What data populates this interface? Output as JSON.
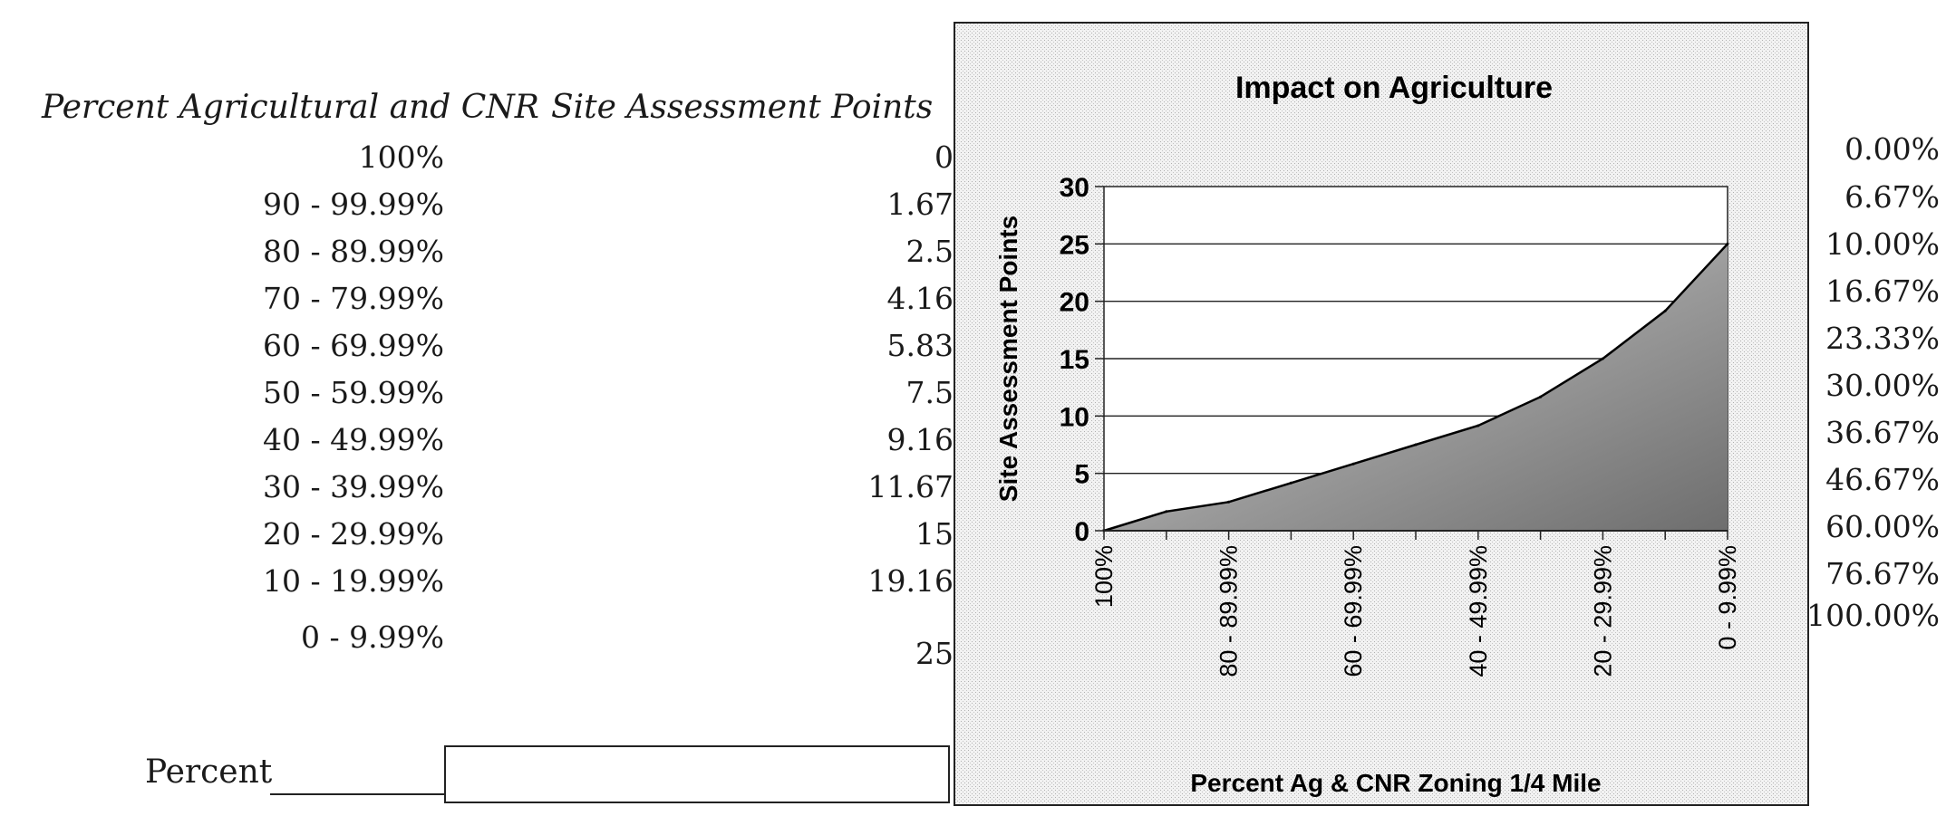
{
  "table": {
    "header_range": "Percent Agricultural and CNR",
    "header_points": "Site Assessment Points",
    "ranges": [
      "100%",
      "90 - 99.99%",
      "80 - 89.99%",
      "70 - 79.99%",
      "60 - 69.99%",
      "50 - 59.99%",
      "40 - 49.99%",
      "30 - 39.99%",
      "20 - 29.99%",
      "10 - 19.99%",
      "0 - 9.99%"
    ],
    "points": [
      "0",
      "1.67",
      "2.5",
      "4.16",
      "5.83",
      "7.5",
      "9.16",
      "11.67",
      "15",
      "19.16",
      "25"
    ],
    "percents": [
      "0.00%",
      "6.67%",
      "10.00%",
      "16.67%",
      "23.33%",
      "30.00%",
      "36.67%",
      "46.67%",
      "60.00%",
      "76.67%",
      "100.00%"
    ]
  },
  "form": {
    "percent_label": "Percent",
    "percent_value": ""
  },
  "colors": {
    "panel_pattern": "#cfcfcf",
    "area_dark": "#6e6e6e",
    "line": "#000000"
  },
  "chart_data": {
    "type": "area",
    "title": "Impact on Agriculture",
    "xlabel": "Percent Ag & CNR Zoning 1/4 Mile",
    "ylabel": "Site Assessment Points",
    "categories": [
      "100%",
      "90 - 99.99%",
      "80 - 89.99%",
      "70 - 79.99%",
      "60 - 69.99%",
      "50 - 59.99%",
      "40 - 49.99%",
      "30 - 39.99%",
      "20 - 29.99%",
      "10 - 19.99%",
      "0 - 9.99%"
    ],
    "tick_labels": [
      "100%",
      "80 - 89.99%",
      "60 - 69.99%",
      "40 - 49.99%",
      "20 - 29.99%",
      "0 - 9.99%"
    ],
    "tick_label_indices": [
      0,
      2,
      4,
      6,
      8,
      10
    ],
    "values": [
      0,
      1.67,
      2.5,
      4.16,
      5.83,
      7.5,
      9.16,
      11.67,
      15,
      19.16,
      25
    ],
    "ylim": [
      0,
      30
    ],
    "yticks": [
      0,
      5,
      10,
      15,
      20,
      25,
      30
    ],
    "grid": true
  }
}
